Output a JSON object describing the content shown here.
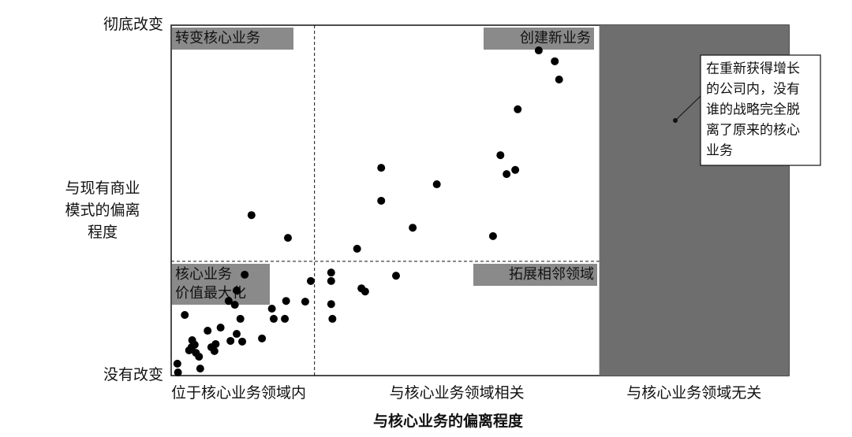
{
  "chart_data": {
    "type": "scatter",
    "x_label": "与核心业务的偏离程度",
    "y_label": [
      "与现有商业",
      "模式的偏离",
      "程度"
    ],
    "xlim": [
      0,
      100
    ],
    "ylim": [
      0,
      100
    ],
    "yticks": [
      {
        "value": 0,
        "label": "没有改变"
      },
      {
        "value": 100,
        "label": "彻底改变"
      }
    ],
    "x_categories": [
      "位于核心业务领域内",
      "与核心业务领域相关",
      "与核心业务领域无关"
    ],
    "dividers": {
      "x": 23.2,
      "y": 32.6
    },
    "shaded_from": 69.3,
    "color": "#000000",
    "quadrant_labels": {
      "top_left": [
        "转变核心业务"
      ],
      "top_right": [
        "创建新业务"
      ],
      "bottom_left": [
        "核心业务",
        "价值最大化"
      ],
      "bottom_right": [
        "拓展相邻领域"
      ]
    },
    "annotation": [
      "在重新获得增长",
      "的公司内，没有",
      "谁的战略完全脱",
      "离了原来的核心",
      "业务"
    ],
    "x": [
      59.5,
      62.1,
      62.8,
      56.1,
      53.3,
      54.3,
      55.7,
      34.0,
      43.0,
      34.0,
      39.1,
      52.1,
      13.0,
      18.9,
      30.1,
      25.9,
      25.9,
      36.4,
      30.8,
      31.4,
      22.6,
      25.9,
      26.1,
      21.7,
      18.6,
      16.3,
      16.6,
      18.4,
      11.9,
      9.3,
      10.6,
      10.3,
      11.2,
      8.0,
      5.9,
      10.6,
      11.5,
      14.7,
      2.2,
      3.4,
      3.3,
      3.8,
      4.0,
      6.5,
      7.2,
      9.6,
      4.5,
      7.0,
      1.0,
      1.1,
      4.7,
      2.9
    ],
    "y": [
      92.8,
      89.7,
      84.5,
      76.0,
      62.9,
      57.5,
      58.7,
      59.3,
      54.6,
      49.9,
      42.2,
      39.8,
      45.8,
      39.3,
      36.2,
      29.4,
      27.0,
      28.5,
      24.9,
      24.0,
      27.0,
      20.4,
      16.2,
      21.1,
      21.3,
      19.1,
      16.2,
      16.2,
      28.8,
      21.3,
      24.3,
      20.2,
      16.2,
      13.7,
      12.8,
      11.9,
      9.7,
      10.6,
      17.3,
      10.1,
      8.1,
      8.8,
      6.5,
      8.1,
      9.0,
      9.9,
      5.4,
      7.0,
      3.4,
      0.9,
      2.0,
      7.2
    ]
  }
}
